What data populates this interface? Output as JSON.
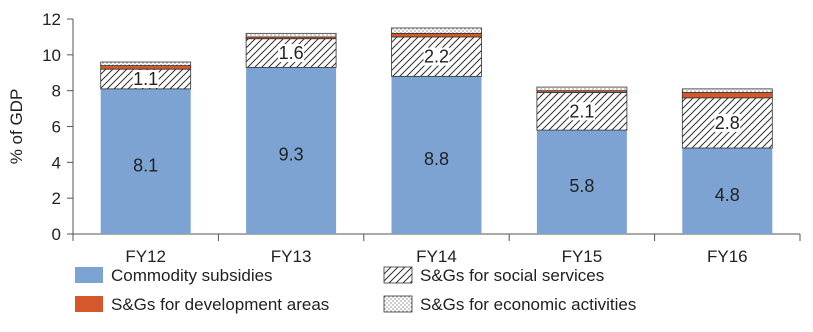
{
  "chart_data": {
    "type": "bar",
    "stacked": true,
    "categories": [
      "FY12",
      "FY13",
      "FY14",
      "FY15",
      "FY16"
    ],
    "series": [
      {
        "name": "Commodity subsidies",
        "values": [
          8.1,
          9.3,
          8.8,
          5.8,
          4.8
        ],
        "color": "#7da3d3",
        "pattern": "solid"
      },
      {
        "name": "S&Gs for social services",
        "values": [
          1.1,
          1.6,
          2.2,
          2.1,
          2.8
        ],
        "color": "#ffffff",
        "pattern": "hatch"
      },
      {
        "name": "S&Gs for development areas",
        "values": [
          0.2,
          0.1,
          0.2,
          0.1,
          0.3
        ],
        "color": "#d4582a",
        "pattern": "solid"
      },
      {
        "name": "S&Gs for economic activities",
        "values": [
          0.2,
          0.2,
          0.3,
          0.2,
          0.2
        ],
        "color": "#ffffff",
        "pattern": "dots"
      }
    ],
    "bar_labels": {
      "Commodity subsidies": [
        "8.1",
        "9.3",
        "8.8",
        "5.8",
        "4.8"
      ],
      "S&Gs for social services": [
        "1.1",
        "1.6",
        "2.2",
        "2.1",
        "2.8"
      ]
    },
    "ylabel": "% of GDP",
    "xlabel": "",
    "title": "",
    "ylim": [
      0,
      12
    ],
    "yticks": [
      0,
      2,
      4,
      6,
      8,
      10,
      12
    ],
    "grid": false,
    "legend_position": "bottom"
  }
}
